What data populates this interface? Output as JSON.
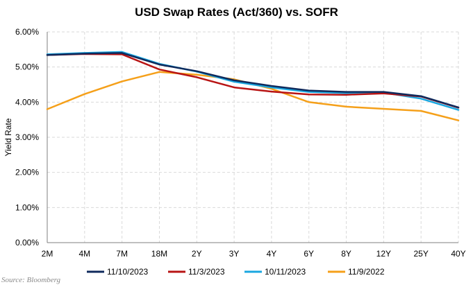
{
  "chart_data": {
    "type": "line",
    "title": "USD Swap Rates (Act/360) vs. SOFR",
    "ylabel": "Yield Rate",
    "xlabel": "",
    "categories": [
      "2M",
      "4M",
      "7M",
      "18M",
      "2Y",
      "3Y",
      "4Y",
      "6Y",
      "8Y",
      "12Y",
      "25Y",
      "40Y"
    ],
    "ylim": [
      0,
      6
    ],
    "yticks": [
      "0.00%",
      "1.00%",
      "2.00%",
      "3.00%",
      "4.00%",
      "5.00%",
      "6.00%"
    ],
    "grid": "horizontal and vertical dashed",
    "legend_position": "bottom",
    "series": [
      {
        "name": "11/10/2023",
        "color": "#0f2a5c",
        "values": [
          5.34,
          5.38,
          5.4,
          5.07,
          4.88,
          4.62,
          4.46,
          4.33,
          4.29,
          4.29,
          4.17,
          3.85
        ]
      },
      {
        "name": "11/3/2023",
        "color": "#b81414",
        "values": [
          5.34,
          5.37,
          5.36,
          4.93,
          4.71,
          4.42,
          4.3,
          4.22,
          4.21,
          4.25,
          4.16,
          3.84
        ]
      },
      {
        "name": "10/11/2023",
        "color": "#1aa7e0",
        "values": [
          5.36,
          5.4,
          5.43,
          5.09,
          4.87,
          4.58,
          4.42,
          4.29,
          4.26,
          4.27,
          4.1,
          3.78
        ]
      },
      {
        "name": "11/9/2022",
        "color": "#f5a01a",
        "values": [
          3.8,
          4.23,
          4.59,
          4.86,
          4.78,
          4.65,
          4.38,
          4.0,
          3.87,
          3.81,
          3.75,
          3.48
        ]
      }
    ]
  },
  "footer": {
    "source": "Source: Bloomberg"
  }
}
